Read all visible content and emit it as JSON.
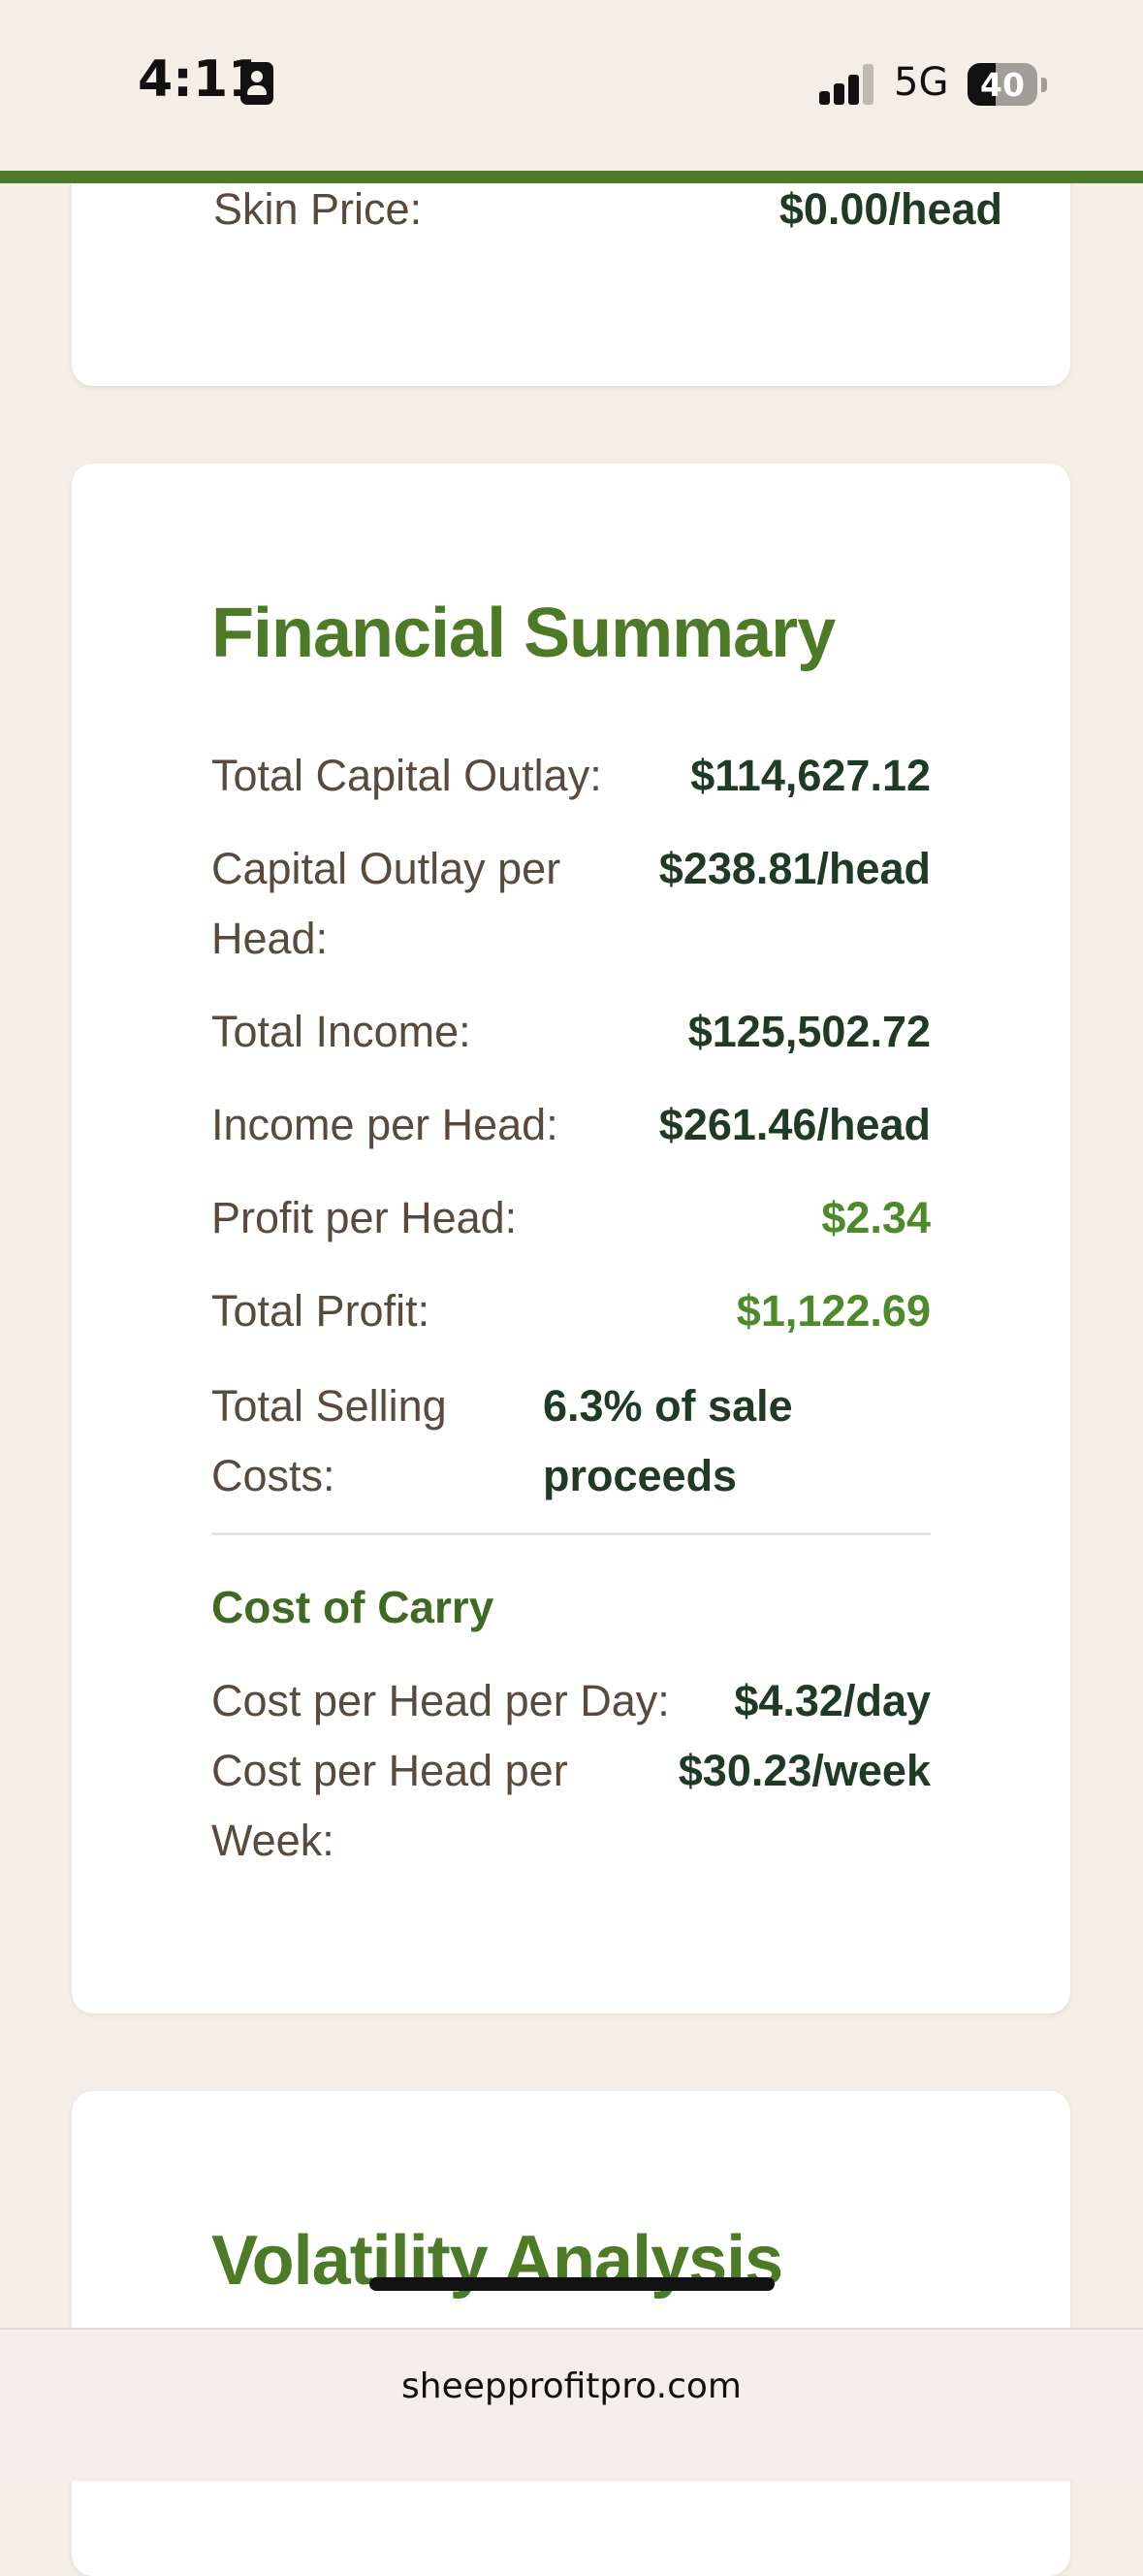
{
  "status_bar": {
    "time": "4:11",
    "network": "5G",
    "battery": "40",
    "battery_level": 0.4
  },
  "top_card": {
    "label": "Skin Price:",
    "value": "$0.00/head"
  },
  "financial_summary": {
    "title": "Financial Summary",
    "rows": [
      {
        "label": "Total Capital Outlay:",
        "value": "$114,627.12"
      },
      {
        "label": "Capital Outlay per Head:",
        "value": "$238.81/head"
      },
      {
        "label": "Total Income:",
        "value": "$125,502.72"
      },
      {
        "label": "Income per Head:",
        "value": "$261.46/head"
      },
      {
        "label": "Profit per Head:",
        "value": "$2.34"
      },
      {
        "label": "Total Profit:",
        "value": "$1,122.69"
      }
    ],
    "selling_costs": {
      "label": "Total Selling Costs:",
      "value": "6.3% of sale proceeds"
    },
    "cost_of_carry": {
      "title": "Cost of Carry",
      "rows": [
        {
          "label": "Cost per Head per Day:",
          "value": "$4.32/day"
        },
        {
          "label": "Cost per Head per Week:",
          "value": "$30.23/week"
        }
      ]
    },
    "positive_color": "#4d8a2a"
  },
  "volatility": {
    "title": "Volatility Analysis"
  },
  "browser": {
    "url": "sheepprofitpro.com"
  }
}
